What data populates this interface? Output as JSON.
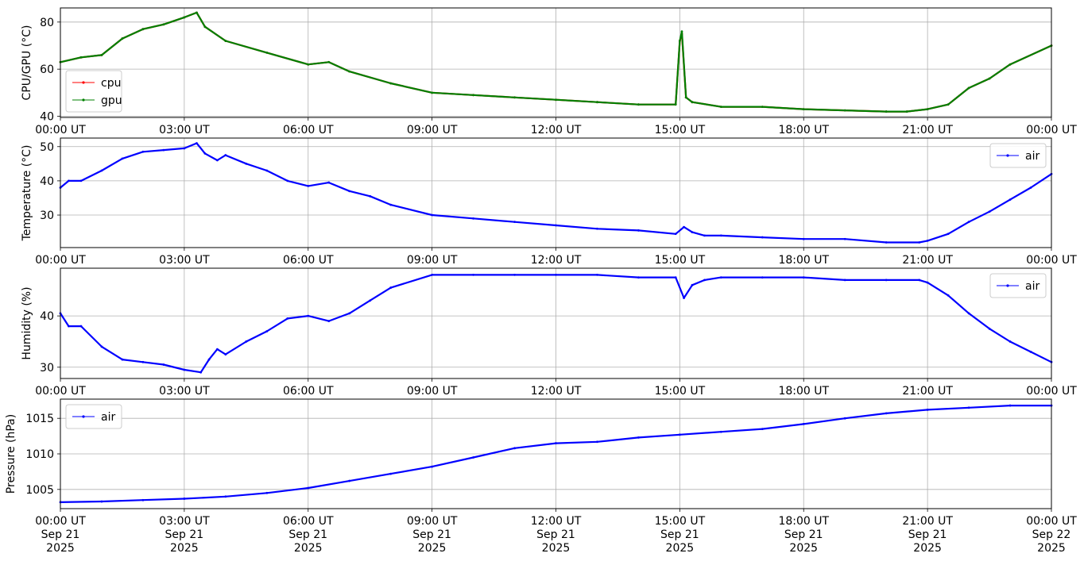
{
  "chart_data": [
    {
      "type": "line",
      "ylabel": "CPU/GPU (°C)",
      "ylim": [
        39.5,
        86
      ],
      "yticks": [
        40,
        60,
        80
      ],
      "grid": true,
      "legend_position": "lower-left",
      "series": [
        {
          "name": "cpu",
          "color": "#ff0000",
          "x": [
            0,
            0.5,
            1,
            1.5,
            2,
            2.5,
            3,
            3.3,
            3.5,
            4,
            5,
            6,
            6.5,
            7,
            8,
            9,
            10,
            11,
            12,
            13,
            14,
            14.9,
            15,
            15.05,
            15.15,
            15.3,
            16,
            17,
            18,
            19,
            20,
            20.5,
            21,
            21.5,
            22,
            22.5,
            23,
            24
          ],
          "y": [
            63,
            65,
            66,
            73,
            77,
            79,
            82,
            84,
            78,
            72,
            67,
            62,
            63,
            59,
            54,
            50,
            49,
            48,
            47,
            46,
            45,
            45,
            72,
            75,
            48,
            46,
            44,
            44,
            43,
            42.5,
            42,
            42,
            43,
            45,
            52,
            56,
            62,
            70
          ]
        },
        {
          "name": "gpu",
          "color": "#008000",
          "x": [
            0,
            0.5,
            1,
            1.5,
            2,
            2.5,
            3,
            3.3,
            3.5,
            4,
            5,
            6,
            6.5,
            7,
            8,
            9,
            10,
            11,
            12,
            13,
            14,
            14.9,
            15,
            15.05,
            15.15,
            15.3,
            16,
            17,
            18,
            19,
            20,
            20.5,
            21,
            21.5,
            22,
            22.5,
            23,
            24
          ],
          "y": [
            63,
            65,
            66,
            73,
            77,
            79,
            82,
            84,
            78,
            72,
            67,
            62,
            63,
            59,
            54,
            50,
            49,
            48,
            47,
            46,
            45,
            45,
            72,
            76,
            48,
            46,
            44,
            44,
            43,
            42.5,
            42,
            42,
            43,
            45,
            52,
            56,
            62,
            70
          ]
        }
      ],
      "xticks": [
        "00:00 UT",
        "03:00 UT",
        "06:00 UT",
        "09:00 UT",
        "12:00 UT",
        "15:00 UT",
        "18:00 UT",
        "21:00 UT",
        "00:00 UT"
      ]
    },
    {
      "type": "line",
      "ylabel": "Temperature (°C)",
      "ylim": [
        20.5,
        52.5
      ],
      "yticks": [
        30,
        40,
        50
      ],
      "grid": true,
      "legend_position": "upper-right",
      "series": [
        {
          "name": "air",
          "color": "#0000ff",
          "x": [
            0,
            0.2,
            0.5,
            1,
            1.5,
            2,
            2.5,
            3,
            3.3,
            3.5,
            3.8,
            4,
            4.5,
            5,
            5.5,
            6,
            6.5,
            7,
            7.5,
            8,
            9,
            10,
            11,
            12,
            13,
            14,
            14.9,
            15.1,
            15.3,
            15.6,
            16,
            17,
            18,
            19,
            20,
            20.8,
            21,
            21.5,
            22,
            22.5,
            23,
            23.5,
            24
          ],
          "y": [
            38,
            40,
            40,
            43,
            46.5,
            48.5,
            49,
            49.5,
            51,
            48,
            46,
            47.5,
            45,
            43,
            40,
            38.5,
            39.5,
            37,
            35.5,
            33,
            30,
            29,
            28,
            27,
            26,
            25.5,
            24.5,
            26.5,
            25,
            24,
            24,
            23.5,
            23,
            23,
            22,
            22,
            22.5,
            24.5,
            28,
            31,
            34.5,
            38,
            42
          ]
        }
      ],
      "xticks": [
        "00:00 UT",
        "03:00 UT",
        "06:00 UT",
        "09:00 UT",
        "12:00 UT",
        "15:00 UT",
        "18:00 UT",
        "21:00 UT",
        "00:00 UT"
      ]
    },
    {
      "type": "line",
      "ylabel": "Humidity (%)",
      "ylim": [
        27.8,
        49.3
      ],
      "yticks": [
        30,
        40
      ],
      "grid": true,
      "legend_position": "upper-right",
      "series": [
        {
          "name": "air",
          "color": "#0000ff",
          "x": [
            0,
            0.2,
            0.5,
            1,
            1.5,
            2,
            2.5,
            3,
            3.4,
            3.6,
            3.8,
            4,
            4.5,
            5,
            5.5,
            6,
            6.5,
            7,
            7.5,
            8,
            9,
            10,
            11,
            12,
            13,
            14,
            14.9,
            15.1,
            15.3,
            15.6,
            16,
            17,
            18,
            19,
            20,
            20.8,
            21,
            21.5,
            22,
            22.5,
            23,
            23.5,
            24
          ],
          "y": [
            40.5,
            38,
            38,
            34,
            31.5,
            31,
            30.5,
            29.5,
            29,
            31.5,
            33.5,
            32.5,
            35,
            37,
            39.5,
            40,
            39,
            40.5,
            43,
            45.5,
            48,
            48,
            48,
            48,
            48,
            47.5,
            47.5,
            43.5,
            46,
            47,
            47.5,
            47.5,
            47.5,
            47,
            47,
            47,
            46.5,
            44,
            40.5,
            37.5,
            35,
            33,
            31
          ]
        }
      ],
      "xticks": [
        "00:00 UT",
        "03:00 UT",
        "06:00 UT",
        "09:00 UT",
        "12:00 UT",
        "15:00 UT",
        "18:00 UT",
        "21:00 UT",
        "00:00 UT"
      ]
    },
    {
      "type": "line",
      "ylabel": "Pressure (hPa)",
      "ylim": [
        1002.3,
        1017.7
      ],
      "yticks": [
        1005,
        1010,
        1015
      ],
      "grid": true,
      "legend_position": "upper-left",
      "series": [
        {
          "name": "air",
          "color": "#0000ff",
          "x": [
            0,
            1,
            2,
            3,
            4,
            5,
            6,
            7,
            8,
            9,
            10,
            11,
            12,
            13,
            14,
            15,
            16,
            17,
            18,
            19,
            20,
            21,
            22,
            23,
            24
          ],
          "y": [
            1003.2,
            1003.3,
            1003.5,
            1003.7,
            1004,
            1004.5,
            1005.2,
            1006.2,
            1007.2,
            1008.2,
            1009.5,
            1010.8,
            1011.5,
            1011.7,
            1012.3,
            1012.7,
            1013.1,
            1013.5,
            1014.2,
            1015,
            1015.7,
            1016.2,
            1016.5,
            1016.8,
            1016.8
          ]
        }
      ],
      "xticks": [
        "00:00 UT\nSep 21\n2025",
        "03:00 UT\nSep 21\n2025",
        "06:00 UT\nSep 21\n2025",
        "09:00 UT\nSep 21\n2025",
        "12:00 UT\nSep 21\n2025",
        "15:00 UT\nSep 21\n2025",
        "18:00 UT\nSep 21\n2025",
        "21:00 UT\nSep 21\n2025",
        "00:00 UT\nSep 22\n2025"
      ]
    }
  ]
}
